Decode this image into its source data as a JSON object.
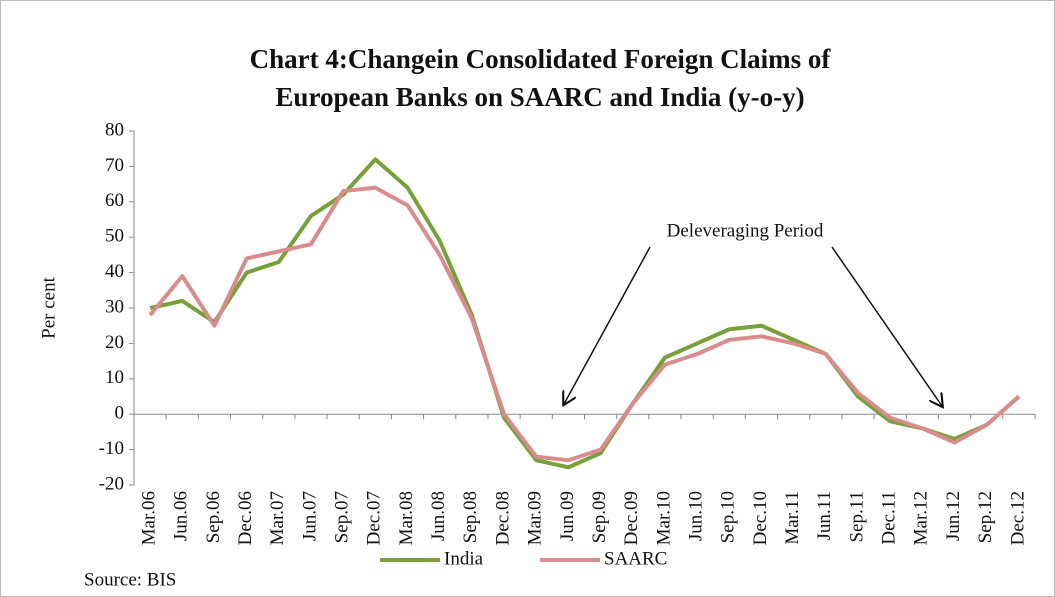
{
  "chart_data": {
    "type": "line",
    "title": [
      "Chart 4:Changein Consolidated Foreign Claims of",
      "European Banks on SAARC and India (y-o-y)"
    ],
    "ylabel": "Per cent",
    "annotation": "Deleveraging Period",
    "source": "Source: BIS",
    "categories": [
      "Mar.06",
      "Jun.06",
      "Sep.06",
      "Dec.06",
      "Mar.07",
      "Jun.07",
      "Sep.07",
      "Dec.07",
      "Mar.08",
      "Jun.08",
      "Sep.08",
      "Dec.08",
      "Mar.09",
      "Jun.09",
      "Sep.09",
      "Dec.09",
      "Mar.10",
      "Jun.10",
      "Sep.10",
      "Dec.10",
      "Mar.11",
      "Jun.11",
      "Sep.11",
      "Dec.11",
      "Mar.12",
      "Jun.12",
      "Sep.12",
      "Dec.12"
    ],
    "series": [
      {
        "name": "India",
        "color": "#77a03a",
        "values": [
          30,
          32,
          26,
          40,
          43,
          56,
          62,
          72,
          64,
          49,
          28,
          -1,
          -13,
          -15,
          -11,
          3,
          16,
          20,
          24,
          25,
          21,
          17,
          5,
          -2,
          -4,
          -7,
          -3,
          5
        ]
      },
      {
        "name": "SAARC",
        "color": "#d98c8c",
        "values": [
          28,
          39,
          25,
          44,
          46,
          48,
          63,
          64,
          59,
          45,
          27,
          0,
          -12,
          -13,
          -10,
          3,
          14,
          17,
          21,
          22,
          20,
          17,
          6,
          -1,
          -4,
          -8,
          -3,
          5
        ]
      }
    ],
    "ylim": [
      -20,
      80
    ],
    "yticks": [
      -20,
      -10,
      0,
      10,
      20,
      30,
      40,
      50,
      60,
      70,
      80
    ]
  }
}
